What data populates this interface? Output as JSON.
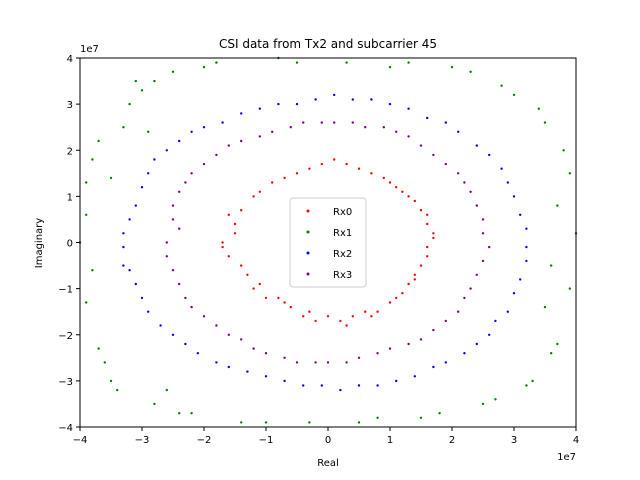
{
  "chart_data": {
    "type": "scatter",
    "title": "CSI data from Tx2 and subcarrier 45",
    "xlabel": "Real",
    "ylabel": "Imaginary",
    "xlim": [
      -40000000,
      40000000
    ],
    "ylim": [
      -40000000,
      40000000
    ],
    "x_offset_label": "1e7",
    "y_offset_label": "1e7",
    "xticks": [
      -40000000,
      -30000000,
      -20000000,
      -10000000,
      0,
      10000000,
      20000000,
      30000000,
      40000000
    ],
    "yticks": [
      -40000000,
      -30000000,
      -20000000,
      -10000000,
      0,
      10000000,
      20000000,
      30000000,
      40000000
    ],
    "xtick_labels": [
      "−4",
      "−3",
      "−2",
      "−1",
      "0",
      "1",
      "2",
      "3",
      "4"
    ],
    "ytick_labels": [
      "−4",
      "−3",
      "−2",
      "−1",
      "0",
      "1",
      "2",
      "3",
      "4"
    ],
    "grid": false,
    "legend_position": "center",
    "series": [
      {
        "name": "Rx0",
        "color": "#ff0000",
        "points": [
          [
            -16000000.0,
            6000000.0
          ],
          [
            -15000000.0,
            2000000.0
          ],
          [
            -16000000.0,
            -3000000.0
          ],
          [
            -12000000.0,
            -10000000.0
          ],
          [
            -10000000.0,
            -12000000.0
          ],
          [
            -6000000.0,
            -14000000.0
          ],
          [
            -2000000.0,
            -17000000.0
          ],
          [
            2000000.0,
            -17000000.0
          ],
          [
            6000000.0,
            -15000000.0
          ],
          [
            10000000.0,
            -13000000.0
          ],
          [
            13000000.0,
            -9000000.0
          ],
          [
            15000000.0,
            -5000000.0
          ],
          [
            16000000.0,
            -1000000.0
          ],
          [
            16000000.0,
            4000000.0
          ],
          [
            14000000.0,
            9000000.0
          ],
          [
            11000000.0,
            12000000.0
          ],
          [
            7000000.0,
            15000000.0
          ],
          [
            3000000.0,
            17000000.0
          ],
          [
            -1000000.0,
            17000000.0
          ],
          [
            -5000000.0,
            15000000.0
          ],
          [
            -9000000.0,
            13000000.0
          ],
          [
            -12000000.0,
            10000000.0
          ],
          [
            -14000000.0,
            7000000.0
          ],
          [
            -17000000.0,
            0
          ],
          [
            -13000000.0,
            -7000000.0
          ],
          [
            -8000000.0,
            -12000000.0
          ],
          [
            -4000000.0,
            -16000000.0
          ],
          [
            0,
            -16000000.0
          ],
          [
            4000000.0,
            -16000000.0
          ],
          [
            8000000.0,
            -15000000.0
          ],
          [
            12000000.0,
            -11000000.0
          ],
          [
            14000000.0,
            -7000000.0
          ],
          [
            17000000.0,
            2000000.0
          ],
          [
            15000000.0,
            7000000.0
          ],
          [
            12000000.0,
            11000000.0
          ],
          [
            9000000.0,
            14000000.0
          ],
          [
            5000000.0,
            16000000.0
          ],
          [
            1000000.0,
            18000000.0
          ],
          [
            -3000000.0,
            16000000.0
          ],
          [
            -7000000.0,
            14000000.0
          ],
          [
            -11000000.0,
            11000000.0
          ],
          [
            -15000000.0,
            4000000.0
          ],
          [
            -17000000.0,
            -1000000.0
          ],
          [
            -14000000.0,
            -5000000.0
          ],
          [
            -11000000.0,
            -9000000.0
          ],
          [
            -7000000.0,
            -13000000.0
          ],
          [
            -3000000.0,
            -15000000.0
          ],
          [
            3000000.0,
            -18000000.0
          ],
          [
            7000000.0,
            -16000000.0
          ],
          [
            11000000.0,
            -12000000.0
          ],
          [
            14000000.0,
            -8000000.0
          ],
          [
            16000000.0,
            -3000000.0
          ],
          [
            17000000.0,
            1000000.0
          ],
          [
            16000000.0,
            6000000.0
          ],
          [
            13000000.0,
            10000000.0
          ],
          [
            10000000.0,
            13000000.0
          ]
        ]
      },
      {
        "name": "Rx1",
        "color": "#008000",
        "points": [
          [
            -39000000.0,
            13000000.0
          ],
          [
            -37000000.0,
            -23000000.0
          ],
          [
            -35000000.0,
            -30000000.0
          ],
          [
            -33000000.0,
            25000000.0
          ],
          [
            -30000000.0,
            33000000.0
          ],
          [
            -28000000.0,
            -35000000.0
          ],
          [
            -25000000.0,
            37000000.0
          ],
          [
            -22000000.0,
            -37000000.0
          ],
          [
            -18000000.0,
            39000000.0
          ],
          [
            -14000000.0,
            -39000000.0
          ],
          [
            -8000000.0,
            40000000.0
          ],
          [
            -3000000.0,
            -39000000.0
          ],
          [
            3000000.0,
            39000000.0
          ],
          [
            8000000.0,
            -38000000.0
          ],
          [
            13000000.0,
            39000000.0
          ],
          [
            18000000.0,
            -37000000.0
          ],
          [
            23000000.0,
            37000000.0
          ],
          [
            27000000.0,
            -34000000.0
          ],
          [
            30000000.0,
            32000000.0
          ],
          [
            33000000.0,
            -30000000.0
          ],
          [
            35000000.0,
            26000000.0
          ],
          [
            37000000.0,
            -22000000.0
          ],
          [
            39000000.0,
            15000000.0
          ],
          [
            40000000.0,
            2000000.0
          ],
          [
            39000000.0,
            -10000000.0
          ],
          [
            -40000000.0,
            0
          ],
          [
            -38000000.0,
            18000000.0
          ],
          [
            -36000000.0,
            -26000000.0
          ],
          [
            -32000000.0,
            30000000.0
          ],
          [
            -28000000.0,
            35000000.0
          ],
          [
            -24000000.0,
            -37000000.0
          ],
          [
            -20000000.0,
            38000000.0
          ],
          [
            -10000000.0,
            -39000000.0
          ],
          [
            -5000000.0,
            39000000.0
          ],
          [
            5000000.0,
            -39000000.0
          ],
          [
            10000000.0,
            38000000.0
          ],
          [
            15000000.0,
            -38000000.0
          ],
          [
            20000000.0,
            38000000.0
          ],
          [
            25000000.0,
            -35000000.0
          ],
          [
            28000000.0,
            34000000.0
          ],
          [
            32000000.0,
            -31000000.0
          ],
          [
            34000000.0,
            29000000.0
          ],
          [
            36000000.0,
            -24000000.0
          ],
          [
            38000000.0,
            20000000.0
          ],
          [
            -39000000.0,
            -13000000.0
          ],
          [
            -37000000.0,
            22000000.0
          ],
          [
            -34000000.0,
            -32000000.0
          ],
          [
            -31000000.0,
            35000000.0
          ],
          [
            -29000000.0,
            24000000.0
          ],
          [
            -26000000.0,
            -32000000.0
          ],
          [
            -39000000.0,
            6000000.0
          ],
          [
            -38000000.0,
            -6000000.0
          ],
          [
            37000000.0,
            8000000.0
          ],
          [
            36000000.0,
            -5000000.0
          ],
          [
            -35000000.0,
            14000000.0
          ],
          [
            35000000.0,
            -14000000.0
          ]
        ]
      },
      {
        "name": "Rx2",
        "color": "#0000ff",
        "points": [
          [
            -33000000.0,
            -5000000.0
          ],
          [
            -32000000.0,
            5000000.0
          ],
          [
            -30000000.0,
            12000000.0
          ],
          [
            -28000000.0,
            18000000.0
          ],
          [
            -24000000.0,
            22000000.0
          ],
          [
            -20000000.0,
            25000000.0
          ],
          [
            -14000000.0,
            28000000.0
          ],
          [
            -8000000.0,
            30000000.0
          ],
          [
            -2000000.0,
            31000000.0
          ],
          [
            4000000.0,
            31000000.0
          ],
          [
            10000000.0,
            30000000.0
          ],
          [
            16000000.0,
            27000000.0
          ],
          [
            21000000.0,
            24000000.0
          ],
          [
            26000000.0,
            19000000.0
          ],
          [
            29000000.0,
            13000000.0
          ],
          [
            31000000.0,
            6000000.0
          ],
          [
            32000000.0,
            -1000000.0
          ],
          [
            31000000.0,
            -8000000.0
          ],
          [
            29000000.0,
            -15000000.0
          ],
          [
            26000000.0,
            -20000000.0
          ],
          [
            22000000.0,
            -24000000.0
          ],
          [
            17000000.0,
            -27000000.0
          ],
          [
            11000000.0,
            -30000000.0
          ],
          [
            5000000.0,
            -31000000.0
          ],
          [
            -1000000.0,
            -31000000.0
          ],
          [
            -7000000.0,
            -30000000.0
          ],
          [
            -13000000.0,
            -28000000.0
          ],
          [
            -18000000.0,
            -26000000.0
          ],
          [
            -23000000.0,
            -22000000.0
          ],
          [
            -27000000.0,
            -18000000.0
          ],
          [
            -30000000.0,
            -12000000.0
          ],
          [
            -32000000.0,
            -6000000.0
          ],
          [
            -31000000.0,
            8000000.0
          ],
          [
            -29000000.0,
            15000000.0
          ],
          [
            -26000000.0,
            20000000.0
          ],
          [
            -22000000.0,
            24000000.0
          ],
          [
            -17000000.0,
            26000000.0
          ],
          [
            -11000000.0,
            29000000.0
          ],
          [
            -5000000.0,
            30000000.0
          ],
          [
            1000000.0,
            32000000.0
          ],
          [
            7000000.0,
            31000000.0
          ],
          [
            13000000.0,
            29000000.0
          ],
          [
            19000000.0,
            26000000.0
          ],
          [
            24000000.0,
            21000000.0
          ],
          [
            28000000.0,
            16000000.0
          ],
          [
            30000000.0,
            10000000.0
          ],
          [
            32000000.0,
            3000000.0
          ],
          [
            32000000.0,
            -4000000.0
          ],
          [
            30000000.0,
            -11000000.0
          ],
          [
            27000000.0,
            -17000000.0
          ],
          [
            24000000.0,
            -22000000.0
          ],
          [
            19000000.0,
            -26000000.0
          ],
          [
            14000000.0,
            -29000000.0
          ],
          [
            8000000.0,
            -31000000.0
          ],
          [
            2000000.0,
            -32000000.0
          ],
          [
            -4000000.0,
            -31000000.0
          ],
          [
            -10000000.0,
            -29000000.0
          ],
          [
            -16000000.0,
            -27000000.0
          ],
          [
            -21000000.0,
            -24000000.0
          ],
          [
            -25000000.0,
            -20000000.0
          ],
          [
            -29000000.0,
            -15000000.0
          ],
          [
            -31000000.0,
            -9000000.0
          ],
          [
            -33000000.0,
            -1000000.0
          ],
          [
            -33000000.0,
            2000000.0
          ]
        ]
      },
      {
        "name": "Rx3",
        "color": "#800080",
        "points": [
          [
            -25000000.0,
            5000000.0
          ],
          [
            -24000000.0,
            11000000.0
          ],
          [
            -22000000.0,
            15000000.0
          ],
          [
            -18000000.0,
            19000000.0
          ],
          [
            -14000000.0,
            22000000.0
          ],
          [
            -9000000.0,
            24000000.0
          ],
          [
            -4000000.0,
            26000000.0
          ],
          [
            1000000.0,
            26000000.0
          ],
          [
            6000000.0,
            25000000.0
          ],
          [
            11000000.0,
            24000000.0
          ],
          [
            15000000.0,
            21000000.0
          ],
          [
            19000000.0,
            17000000.0
          ],
          [
            22000000.0,
            13000000.0
          ],
          [
            24000000.0,
            8000000.0
          ],
          [
            25000000.0,
            2000000.0
          ],
          [
            25000000.0,
            -4000000.0
          ],
          [
            23000000.0,
            -10000000.0
          ],
          [
            21000000.0,
            -15000000.0
          ],
          [
            17000000.0,
            -19000000.0
          ],
          [
            13000000.0,
            -22000000.0
          ],
          [
            8000000.0,
            -24000000.0
          ],
          [
            3000000.0,
            -26000000.0
          ],
          [
            -2000000.0,
            -26000000.0
          ],
          [
            -7000000.0,
            -25000000.0
          ],
          [
            -12000000.0,
            -23000000.0
          ],
          [
            -16000000.0,
            -20000000.0
          ],
          [
            -20000000.0,
            -16000000.0
          ],
          [
            -23000000.0,
            -12000000.0
          ],
          [
            -25000000.0,
            -6000000.0
          ],
          [
            -26000000.0,
            0
          ],
          [
            -25000000.0,
            8000000.0
          ],
          [
            -23000000.0,
            13000000.0
          ],
          [
            -20000000.0,
            17000000.0
          ],
          [
            -16000000.0,
            21000000.0
          ],
          [
            -11000000.0,
            23000000.0
          ],
          [
            -6000000.0,
            25000000.0
          ],
          [
            -1000000.0,
            26000000.0
          ],
          [
            4000000.0,
            26000000.0
          ],
          [
            9000000.0,
            25000000.0
          ],
          [
            13000000.0,
            23000000.0
          ],
          [
            17000000.0,
            19000000.0
          ],
          [
            21000000.0,
            15000000.0
          ],
          [
            23000000.0,
            11000000.0
          ],
          [
            25000000.0,
            5000000.0
          ],
          [
            26000000.0,
            -1000000.0
          ],
          [
            24000000.0,
            -7000000.0
          ],
          [
            22000000.0,
            -12000000.0
          ],
          [
            19000000.0,
            -17000000.0
          ],
          [
            15000000.0,
            -21000000.0
          ],
          [
            10000000.0,
            -23000000.0
          ],
          [
            5000000.0,
            -25000000.0
          ],
          [
            0,
            -26000000.0
          ],
          [
            -5000000.0,
            -26000000.0
          ],
          [
            -10000000.0,
            -24000000.0
          ],
          [
            -14000000.0,
            -21000000.0
          ],
          [
            -18000000.0,
            -18000000.0
          ],
          [
            -22000000.0,
            -14000000.0
          ],
          [
            -24000000.0,
            -9000000.0
          ],
          [
            -26000000.0,
            -3000000.0
          ],
          [
            -24000000.0,
            3000000.0
          ]
        ]
      }
    ]
  }
}
